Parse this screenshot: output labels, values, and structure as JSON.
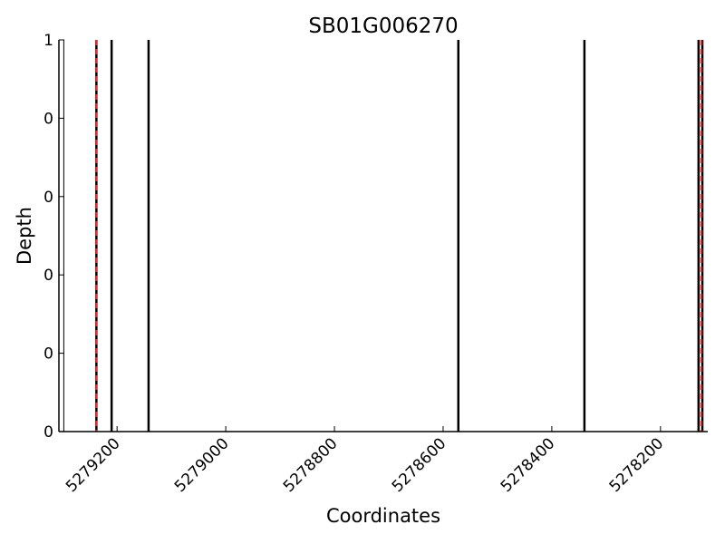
{
  "chart_data": {
    "type": "vlines",
    "title": "SB01G006270",
    "x_label": "Coordinates",
    "y_label": "Depth",
    "xlim": [
      5279307,
      5278113
    ],
    "xticks": [
      5279200,
      5279000,
      5278800,
      5278600,
      5278400,
      5278200
    ],
    "ylim": [
      0,
      1
    ],
    "yticks": [
      {
        "value": 0,
        "label": "0"
      },
      {
        "value": 0.2,
        "label": "0"
      },
      {
        "value": 0.4,
        "label": "0"
      },
      {
        "value": 0.6,
        "label": "0"
      },
      {
        "value": 0.8,
        "label": "0"
      },
      {
        "value": 1,
        "label": "1"
      }
    ],
    "lines": [
      {
        "color": "#000000",
        "width": 1,
        "dashed": false,
        "x": [
          5279298
        ]
      },
      {
        "color": "#000000",
        "width": 2.5,
        "dashed": false,
        "x": [
          5279238,
          5279210,
          5279142,
          5278572,
          5278340,
          5278130,
          5278123
        ]
      },
      {
        "color": "#ff2020",
        "width": 2,
        "dashed": true,
        "x": [
          5279238,
          5278125
        ]
      }
    ]
  }
}
